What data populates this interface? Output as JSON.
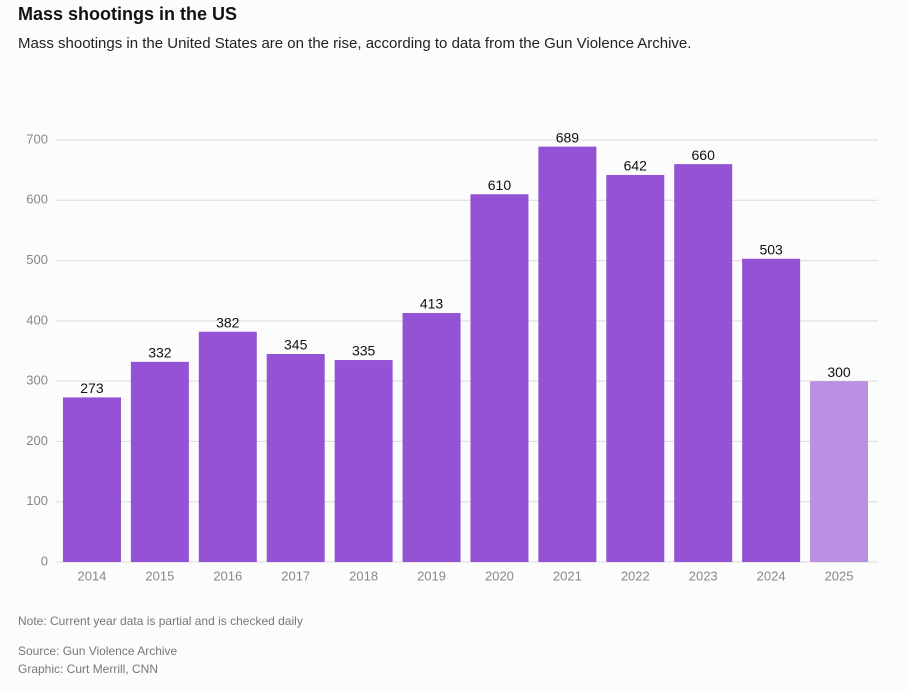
{
  "chart_data": {
    "type": "bar",
    "title": "Mass shootings in the US",
    "subtitle": "Mass shootings in the United States are on the rise, according to data from the Gun Violence Archive.",
    "categories": [
      "2014",
      "2015",
      "2016",
      "2017",
      "2018",
      "2019",
      "2020",
      "2021",
      "2022",
      "2023",
      "2024",
      "2025"
    ],
    "values": [
      273,
      332,
      382,
      345,
      335,
      413,
      610,
      689,
      642,
      660,
      503,
      300
    ],
    "colors": [
      "#9452d4",
      "#9452d4",
      "#9452d4",
      "#9452d4",
      "#9452d4",
      "#9452d4",
      "#9452d4",
      "#9452d4",
      "#9452d4",
      "#9452d4",
      "#9452d4",
      "#ba91e2"
    ],
    "ylim": [
      0,
      700
    ],
    "yticks": [
      0,
      100,
      200,
      300,
      400,
      500,
      600,
      700
    ],
    "grid": true,
    "note": "Note: Current year data is partial and is checked daily",
    "source": "Source: Gun Violence Archive",
    "credit": "Graphic: Curt Merrill, CNN"
  }
}
